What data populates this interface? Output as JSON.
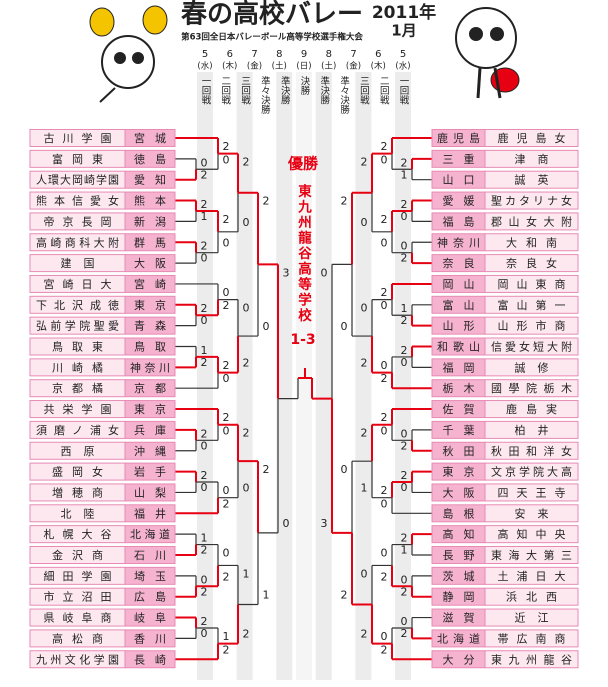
{
  "header": {
    "title": "春の高校バレー",
    "year": "2011年",
    "month": "1月",
    "subtitle": "第63回全日本バレーボール高等学校選手権大会"
  },
  "dates": [
    {
      "day": "5",
      "dow": "(水)"
    },
    {
      "day": "6",
      "dow": "(木)"
    },
    {
      "day": "7",
      "dow": "(金)"
    },
    {
      "day": "8",
      "dow": "(土)"
    },
    {
      "day": "9",
      "dow": "(日)"
    },
    {
      "day": "8",
      "dow": "(土)"
    },
    {
      "day": "7",
      "dow": "(金)"
    },
    {
      "day": "6",
      "dow": "(木)"
    },
    {
      "day": "5",
      "dow": "(水)"
    }
  ],
  "rounds": [
    "一回戦",
    "二回戦",
    "三回戦",
    "準々決勝",
    "準決勝",
    "決勝",
    "準決勝",
    "準々決勝",
    "三回戦",
    "二回戦",
    "一回戦"
  ],
  "champion": {
    "label": "優勝",
    "school": "東九州龍谷高等学校",
    "score": "1-3"
  },
  "left": {
    "teams": [
      {
        "school": "古川学園",
        "pref": "宮城"
      },
      {
        "school": "富岡東",
        "pref": "徳島"
      },
      {
        "school": "人環大岡崎学園",
        "pref": "愛知"
      },
      {
        "school": "熊本信愛女",
        "pref": "熊本"
      },
      {
        "school": "帝京長岡",
        "pref": "新潟"
      },
      {
        "school": "高崎商科大附",
        "pref": "群馬"
      },
      {
        "school": "建国",
        "pref": "大阪"
      },
      {
        "school": "宮崎日大",
        "pref": "宮崎"
      },
      {
        "school": "下北沢成徳",
        "pref": "東京"
      },
      {
        "school": "弘前学院聖愛",
        "pref": "青森"
      },
      {
        "school": "鳥取東",
        "pref": "鳥取"
      },
      {
        "school": "川崎橘",
        "pref": "神奈川"
      },
      {
        "school": "京都橘",
        "pref": "京都"
      },
      {
        "school": "共栄学園",
        "pref": "東京"
      },
      {
        "school": "須磨ノ浦女",
        "pref": "兵庫"
      },
      {
        "school": "西原",
        "pref": "沖縄"
      },
      {
        "school": "盛岡女",
        "pref": "岩手"
      },
      {
        "school": "増穂商",
        "pref": "山梨"
      },
      {
        "school": "北陸",
        "pref": "福井"
      },
      {
        "school": "札幌大谷",
        "pref": "北海道"
      },
      {
        "school": "金沢商",
        "pref": "石川"
      },
      {
        "school": "細田学園",
        "pref": "埼玉"
      },
      {
        "school": "市立沼田",
        "pref": "広島"
      },
      {
        "school": "県岐阜商",
        "pref": "岐阜"
      },
      {
        "school": "高松商",
        "pref": "香川"
      },
      {
        "school": "九州文化学園",
        "pref": "長崎"
      }
    ],
    "scores": {
      "first": [
        [
          0,
          2
        ],
        [
          2,
          1
        ],
        [
          2,
          0
        ],
        [
          2,
          0
        ],
        [
          1,
          2
        ],
        [
          2,
          0
        ],
        [
          2,
          0
        ],
        [
          1,
          2
        ],
        [
          0,
          2
        ],
        [
          2,
          0
        ]
      ],
      "second": [
        [
          2,
          0
        ],
        [
          2,
          0
        ],
        [
          0,
          2
        ],
        [
          2,
          0
        ],
        [
          2,
          0
        ],
        [
          0,
          2
        ],
        [
          0,
          2
        ],
        [
          1,
          2
        ]
      ],
      "third": [
        [
          2,
          0
        ],
        [
          0,
          2
        ],
        [
          2,
          0
        ],
        [
          1,
          2
        ]
      ],
      "quarter": [
        [
          2,
          0
        ],
        [
          2,
          1
        ]
      ],
      "semi": [
        [
          3,
          0
        ]
      ]
    }
  },
  "right": {
    "teams": [
      {
        "school": "鹿児島女",
        "pref": "鹿児島"
      },
      {
        "school": "津商",
        "pref": "三重"
      },
      {
        "school": "誠英",
        "pref": "山口"
      },
      {
        "school": "聖カタリナ女",
        "pref": "愛媛"
      },
      {
        "school": "郡山女大附",
        "pref": "福島"
      },
      {
        "school": "大和南",
        "pref": "神奈川"
      },
      {
        "school": "奈良女",
        "pref": "奈良"
      },
      {
        "school": "岡山東商",
        "pref": "岡山"
      },
      {
        "school": "富山第一",
        "pref": "富山"
      },
      {
        "school": "山形市商",
        "pref": "山形"
      },
      {
        "school": "信愛女短大附",
        "pref": "和歌山"
      },
      {
        "school": "誠修",
        "pref": "福岡"
      },
      {
        "school": "國學院栃木",
        "pref": "栃木"
      },
      {
        "school": "鹿島実",
        "pref": "佐賀"
      },
      {
        "school": "柏井",
        "pref": "千葉"
      },
      {
        "school": "秋田和洋女",
        "pref": "秋田"
      },
      {
        "school": "文京学院大高",
        "pref": "東京"
      },
      {
        "school": "四天王寺",
        "pref": "大阪"
      },
      {
        "school": "安来",
        "pref": "島根"
      },
      {
        "school": "高知中央",
        "pref": "高知"
      },
      {
        "school": "東海大第三",
        "pref": "長野"
      },
      {
        "school": "土浦日大",
        "pref": "茨城"
      },
      {
        "school": "浜北西",
        "pref": "静岡"
      },
      {
        "school": "近江",
        "pref": "滋賀"
      },
      {
        "school": "帯広南商",
        "pref": "北海道"
      },
      {
        "school": "東九州龍谷",
        "pref": "大分"
      }
    ],
    "scores": {
      "first": [
        [
          2,
          1
        ],
        [
          2,
          0
        ],
        [
          0,
          2
        ],
        [
          1,
          2
        ],
        [
          2,
          0
        ],
        [
          0,
          2
        ],
        [
          2,
          0
        ],
        [
          2,
          1
        ],
        [
          0,
          2
        ],
        [
          0,
          2
        ]
      ],
      "second": [
        [
          2,
          0
        ],
        [
          2,
          0
        ],
        [
          2,
          0
        ],
        [
          0,
          2
        ],
        [
          2,
          0
        ],
        [
          2,
          0
        ],
        [
          0,
          2
        ],
        [
          0,
          2
        ]
      ],
      "third": [
        [
          2,
          0
        ],
        [
          0,
          2
        ],
        [
          2,
          1
        ],
        [
          0,
          2
        ]
      ],
      "quarter": [
        [
          2,
          0
        ],
        [
          0,
          2
        ]
      ],
      "semi": [
        [
          0,
          3
        ]
      ]
    }
  }
}
